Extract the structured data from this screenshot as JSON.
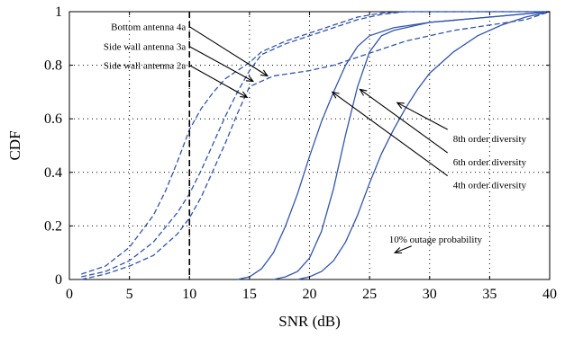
{
  "chart_data": {
    "type": "line",
    "xlabel": "SNR (dB)",
    "ylabel": "CDF",
    "xlim": [
      0,
      40
    ],
    "ylim": [
      0,
      1
    ],
    "xticks": [
      0,
      5,
      10,
      15,
      20,
      25,
      30,
      35,
      40
    ],
    "yticks": [
      0,
      0.2,
      0.4,
      0.6,
      0.8,
      1
    ],
    "xtick_labels": [
      "0",
      "5",
      "10",
      "15",
      "20",
      "25",
      "30",
      "35",
      "40"
    ],
    "ytick_labels": [
      "0",
      "0.2",
      "0.4",
      "0.6",
      "0.8",
      "1"
    ],
    "grid": "dotted",
    "colors": {
      "series": "#3355aa",
      "annotation": "#000000"
    },
    "series": [
      {
        "name": "Bottom antenna 4a",
        "style": "dashed",
        "x": [
          1,
          3,
          5,
          7,
          8,
          9,
          10,
          11,
          12,
          13,
          14,
          15,
          16,
          18,
          20,
          22,
          24,
          26,
          28,
          30,
          35,
          40
        ],
        "y": [
          0.02,
          0.05,
          0.12,
          0.24,
          0.33,
          0.44,
          0.56,
          0.64,
          0.7,
          0.75,
          0.78,
          0.81,
          0.85,
          0.89,
          0.92,
          0.95,
          0.98,
          0.995,
          1.0,
          1.0,
          1.0,
          1.0
        ]
      },
      {
        "name": "Side wall antenna 3a",
        "style": "dashed",
        "x": [
          1,
          3,
          5,
          7,
          9,
          10,
          11,
          12,
          13,
          14,
          15,
          16,
          18,
          20,
          22,
          24,
          26,
          28,
          30,
          35,
          40
        ],
        "y": [
          0.01,
          0.03,
          0.07,
          0.14,
          0.25,
          0.32,
          0.41,
          0.51,
          0.61,
          0.7,
          0.78,
          0.84,
          0.88,
          0.91,
          0.94,
          0.97,
          0.99,
          1.0,
          1.0,
          1.0,
          1.0
        ]
      },
      {
        "name": "Side wall antenna 2a",
        "style": "dashed",
        "x": [
          1,
          3,
          5,
          7,
          9,
          10,
          11,
          12,
          13,
          14,
          15,
          17,
          20,
          22,
          24,
          26,
          28,
          30,
          32,
          35,
          38,
          40
        ],
        "y": [
          0.0,
          0.02,
          0.05,
          0.09,
          0.17,
          0.23,
          0.31,
          0.41,
          0.51,
          0.62,
          0.72,
          0.76,
          0.78,
          0.8,
          0.83,
          0.86,
          0.89,
          0.91,
          0.93,
          0.95,
          0.97,
          1.0
        ]
      },
      {
        "name": "8th order diversity",
        "style": "solid",
        "x": [
          14,
          15,
          16,
          17,
          18,
          19,
          20,
          21,
          22,
          23,
          24,
          25,
          27,
          30,
          35,
          40
        ],
        "y": [
          0.0,
          0.01,
          0.04,
          0.1,
          0.2,
          0.32,
          0.46,
          0.59,
          0.7,
          0.8,
          0.87,
          0.91,
          0.94,
          0.96,
          0.98,
          1.0
        ]
      },
      {
        "name": "6th order diversity",
        "style": "solid",
        "x": [
          17,
          18,
          19,
          20,
          21,
          22,
          23,
          24,
          25,
          26,
          27,
          30,
          35,
          40
        ],
        "y": [
          0.0,
          0.01,
          0.03,
          0.08,
          0.18,
          0.34,
          0.54,
          0.72,
          0.85,
          0.91,
          0.93,
          0.96,
          0.98,
          1.0
        ]
      },
      {
        "name": "4th order diversity",
        "style": "solid",
        "x": [
          19,
          20,
          21,
          22,
          23,
          24,
          25,
          26,
          27,
          28,
          29,
          30,
          32,
          34,
          36,
          38,
          40
        ],
        "y": [
          0.0,
          0.01,
          0.03,
          0.07,
          0.14,
          0.24,
          0.36,
          0.47,
          0.56,
          0.64,
          0.71,
          0.77,
          0.85,
          0.91,
          0.95,
          0.98,
          1.0
        ]
      }
    ],
    "threshold_line": {
      "x": 10
    },
    "annotations": [
      {
        "label": "Bottom antenna 4a",
        "tail": [
          10.0,
          0.944
        ],
        "head": [
          16.5,
          0.76
        ]
      },
      {
        "label": "Side wall antenna 3a",
        "tail": [
          10.0,
          0.87
        ],
        "head": [
          15.3,
          0.74
        ]
      },
      {
        "label": "Side wall antenna 2a",
        "tail": [
          10.0,
          0.8
        ],
        "head": [
          14.8,
          0.68
        ]
      },
      {
        "label": "8th order diversity",
        "tail": [
          31.5,
          0.56
        ],
        "head": [
          27.3,
          0.66
        ]
      },
      {
        "label": "6th order diversity",
        "tail": [
          31.5,
          0.473
        ],
        "head": [
          24.2,
          0.71
        ]
      },
      {
        "label": "4th order diversity",
        "tail": [
          31.5,
          0.387
        ],
        "head": [
          21.9,
          0.7
        ]
      },
      {
        "label": "10% outage probability",
        "tail": [
          28.5,
          0.125
        ],
        "head": [
          27.1,
          0.1
        ]
      }
    ]
  }
}
